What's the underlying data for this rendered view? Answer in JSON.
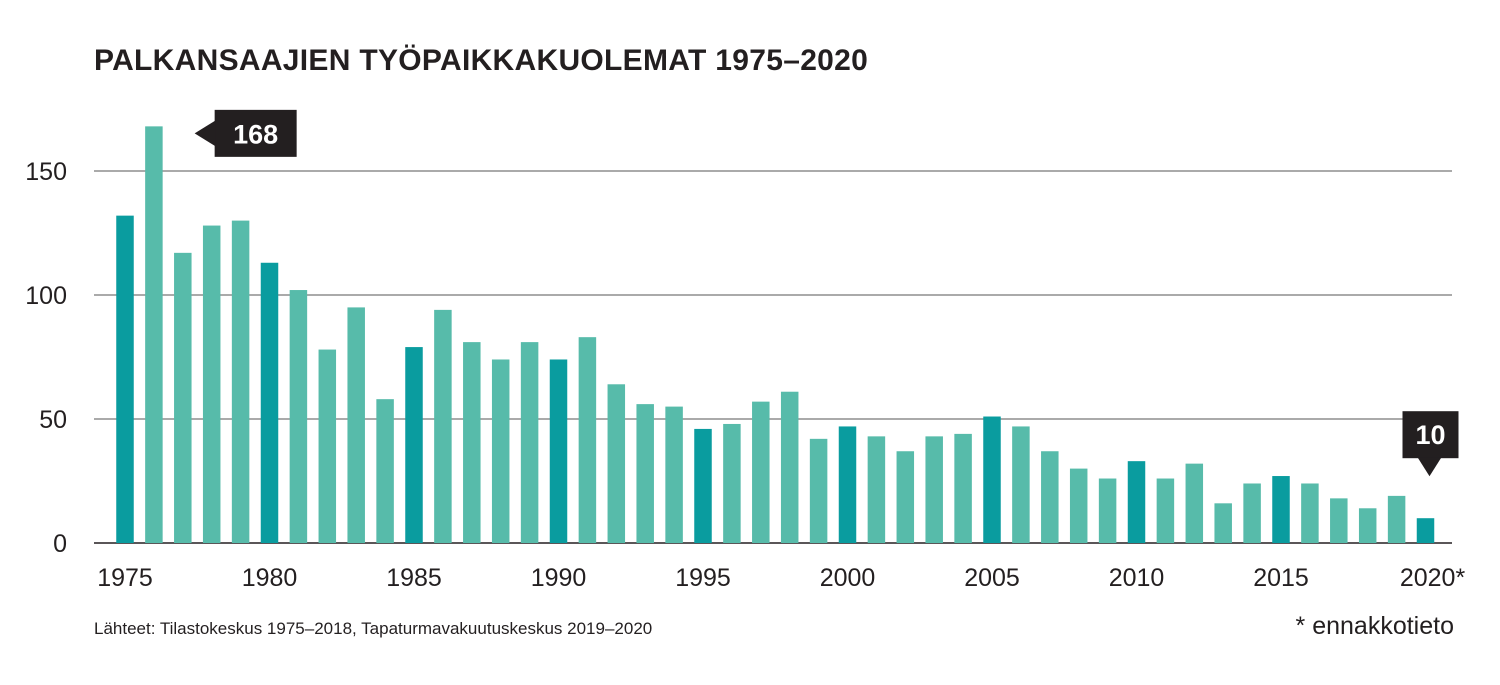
{
  "chart_data": {
    "type": "bar",
    "title": "PALKANSAAJIEN TYÖPAIKKAKUOLEMAT 1975–2020",
    "xlabel": "",
    "ylabel": "",
    "ylim": [
      0,
      168
    ],
    "yticks": [
      0,
      50,
      100,
      150
    ],
    "grid": true,
    "x_tick_labels": [
      "1975",
      "1980",
      "1985",
      "1990",
      "1995",
      "2000",
      "2005",
      "2010",
      "2015",
      "2020*"
    ],
    "categories": [
      "1975",
      "1976",
      "1977",
      "1978",
      "1979",
      "1980",
      "1981",
      "1982",
      "1983",
      "1984",
      "1985",
      "1986",
      "1987",
      "1988",
      "1989",
      "1990",
      "1991",
      "1992",
      "1993",
      "1994",
      "1995",
      "1996",
      "1997",
      "1998",
      "1999",
      "2000",
      "2001",
      "2002",
      "2003",
      "2004",
      "2005",
      "2006",
      "2007",
      "2008",
      "2009",
      "2010",
      "2011",
      "2012",
      "2013",
      "2014",
      "2015",
      "2016",
      "2017",
      "2018",
      "2019",
      "2020"
    ],
    "values": [
      132,
      168,
      117,
      128,
      130,
      113,
      102,
      78,
      95,
      58,
      79,
      94,
      81,
      74,
      81,
      74,
      83,
      64,
      56,
      55,
      46,
      48,
      57,
      61,
      42,
      47,
      43,
      37,
      43,
      44,
      51,
      47,
      37,
      30,
      26,
      33,
      26,
      32,
      16,
      24,
      27,
      24,
      18,
      14,
      19,
      10
    ],
    "highlight_years": [
      "1975",
      "1980",
      "1985",
      "1990",
      "1995",
      "2000",
      "2005",
      "2010",
      "2015",
      "2020"
    ],
    "annotations": [
      {
        "category": "1976",
        "label": "168"
      },
      {
        "category": "2020",
        "label": "10"
      }
    ],
    "colors": {
      "bar": "#57bbaa",
      "bar_highlight": "#0a9c9f",
      "grid": "#555555",
      "callout": "#231f20",
      "callout_text": "#ffffff"
    }
  },
  "source_text": "Lähteet: Tilastokeskus 1975–2018, Tapaturmavakuutuskeskus 2019–2020",
  "footnote_text": "* ennakkotieto"
}
